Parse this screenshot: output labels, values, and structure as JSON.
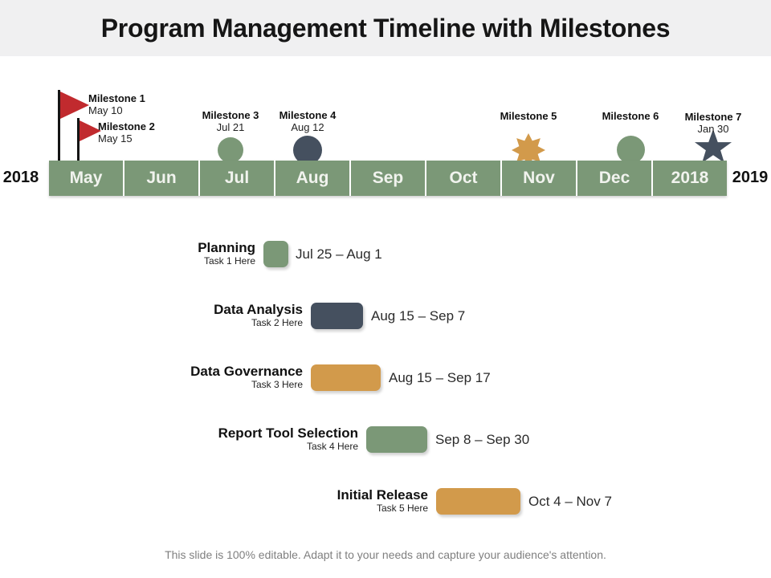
{
  "slide": {
    "title": "Program Management Timeline with Milestones",
    "footer": "This slide is 100% editable. Adapt it to your needs and capture your audience's attention."
  },
  "timeline": {
    "left_year": "2018",
    "right_year": "2019",
    "segments": [
      "May",
      "Jun",
      "Jul",
      "Aug",
      "Sep",
      "Oct",
      "Nov",
      "Dec",
      "2018"
    ]
  },
  "milestones": [
    {
      "label": "Milestone 1",
      "date": "May 10",
      "icon": "flag-icon"
    },
    {
      "label": "Milestone 2",
      "date": "May 15",
      "icon": "flag-icon"
    },
    {
      "label": "Milestone 3",
      "date": "Jul 21",
      "icon": "circle-icon-green"
    },
    {
      "label": "Milestone 4",
      "date": "Aug 12",
      "icon": "circle-icon-slate"
    },
    {
      "label": "Milestone 5",
      "date": "",
      "icon": "burst-icon-orange"
    },
    {
      "label": "Milestone 6",
      "date": "",
      "icon": "circle-icon-green"
    },
    {
      "label": "Milestone 7",
      "date": "Jan 30",
      "icon": "star-icon-slate"
    }
  ],
  "tasks": [
    {
      "name": "Planning",
      "subtitle": "Task 1 Here",
      "range": "Jul 25 – Aug 1",
      "color": "green"
    },
    {
      "name": "Data Analysis",
      "subtitle": "Task 2 Here",
      "range": "Aug 15 – Sep 7",
      "color": "slate"
    },
    {
      "name": "Data Governance",
      "subtitle": "Task 3 Here",
      "range": "Aug 15 – Sep 17",
      "color": "orange"
    },
    {
      "name": "Report Tool Selection",
      "subtitle": "Task 4 Here",
      "range": "Sep 8 – Sep 30",
      "color": "green"
    },
    {
      "name": "Initial Release",
      "subtitle": "Task 5 Here",
      "range": "Oct 4 – Nov 7",
      "color": "orange"
    }
  ],
  "colors": {
    "green": "#7b9877",
    "slate": "#45505f",
    "orange": "#d29a4b",
    "flag_red": "#c12a2e",
    "title_band": "#f0f0f1",
    "footer_text": "#7f7f7f"
  }
}
